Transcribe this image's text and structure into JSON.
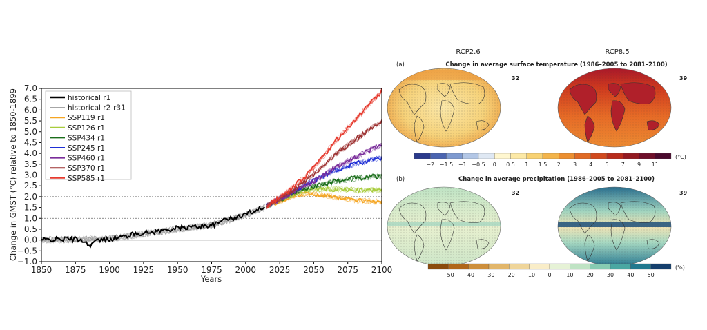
{
  "chart_data": [
    {
      "type": "line",
      "title": "",
      "xlabel": "Years",
      "ylabel": "Change in GMST (°C) relative to 1850-1899",
      "xlim": [
        1850,
        2100
      ],
      "ylim": [
        -1.0,
        7.0
      ],
      "x_ticks": [
        "1850",
        "1875",
        "1900",
        "1925",
        "1950",
        "1975",
        "2000",
        "2025",
        "2050",
        "2075",
        "2100"
      ],
      "y_ticks": [
        "−1.0",
        "−0.5",
        "0.0",
        "0.5",
        "1.0",
        "1.5",
        "2.0",
        "2.5",
        "3.0",
        "3.5",
        "4.0",
        "4.5",
        "5.0",
        "5.5",
        "6.0",
        "6.5",
        "7.0"
      ],
      "reference_lines": [
        0.0,
        1.0,
        2.0
      ],
      "legend_position": "top-left",
      "series": [
        {
          "name": "historical r1",
          "color": "#000000",
          "x": [
            1850,
            1870,
            1880,
            1885,
            1890,
            1900,
            1910,
            1920,
            1930,
            1940,
            1950,
            1960,
            1970,
            1980,
            1985,
            1990,
            2000,
            2014
          ],
          "values": [
            0.0,
            0.05,
            0.0,
            -0.25,
            -0.05,
            0.05,
            0.15,
            0.3,
            0.35,
            0.45,
            0.55,
            0.6,
            0.65,
            0.75,
            1.05,
            0.95,
            1.2,
            1.55
          ]
        },
        {
          "name": "historical r2-r31",
          "color": "#9a9a9a",
          "x": [
            1850,
            1900,
            1950,
            1975,
            2000,
            2014
          ],
          "values": [
            0.0,
            0.05,
            0.5,
            0.7,
            1.15,
            1.5
          ]
        },
        {
          "name": "SSP119 r1",
          "color": "#f5a623",
          "x": [
            2015,
            2025,
            2035,
            2045,
            2055,
            2065,
            2080,
            2100
          ],
          "values": [
            1.55,
            1.8,
            2.05,
            2.15,
            2.1,
            2.0,
            1.85,
            1.75
          ]
        },
        {
          "name": "SSP126 r1",
          "color": "#a8cc3c",
          "x": [
            2015,
            2025,
            2035,
            2045,
            2055,
            2065,
            2080,
            2100
          ],
          "values": [
            1.55,
            1.85,
            2.1,
            2.3,
            2.35,
            2.35,
            2.3,
            2.3
          ]
        },
        {
          "name": "SSP434 r1",
          "color": "#1a6d1a",
          "x": [
            2015,
            2025,
            2035,
            2045,
            2055,
            2065,
            2080,
            2100
          ],
          "values": [
            1.55,
            1.85,
            2.15,
            2.4,
            2.55,
            2.7,
            2.85,
            2.95
          ]
        },
        {
          "name": "SSP245 r1",
          "color": "#1f2fd6",
          "x": [
            2015,
            2025,
            2035,
            2045,
            2055,
            2065,
            2080,
            2100
          ],
          "values": [
            1.55,
            1.9,
            2.25,
            2.6,
            2.9,
            3.2,
            3.5,
            3.8
          ]
        },
        {
          "name": "SSP460 r1",
          "color": "#7a2d9a",
          "x": [
            2015,
            2025,
            2035,
            2045,
            2055,
            2065,
            2080,
            2100
          ],
          "values": [
            1.55,
            1.9,
            2.2,
            2.55,
            2.9,
            3.3,
            3.8,
            4.4
          ]
        },
        {
          "name": "SSP370 r1",
          "color": "#9c3030",
          "x": [
            2015,
            2025,
            2035,
            2045,
            2055,
            2065,
            2080,
            2100
          ],
          "values": [
            1.55,
            1.9,
            2.3,
            2.8,
            3.3,
            3.9,
            4.6,
            5.5
          ]
        },
        {
          "name": "SSP585 r1",
          "color": "#e63a2e",
          "x": [
            2015,
            2025,
            2035,
            2045,
            2055,
            2065,
            2080,
            2100
          ],
          "values": [
            1.55,
            1.95,
            2.45,
            3.0,
            3.7,
            4.5,
            5.5,
            6.9
          ]
        }
      ]
    },
    {
      "type": "heatmap",
      "panel_label": "(a)",
      "title": "Change in average surface temperature (1986–2005 to 2081–2100)",
      "columns": [
        "RCP2.6",
        "RCP8.5"
      ],
      "model_counts": [
        "32",
        "39"
      ],
      "colorbar_ticks": [
        "−2",
        "−1.5",
        "−1",
        "−0.5",
        "0",
        "0.5",
        "1",
        "1.5",
        "2",
        "3",
        "4",
        "5",
        "7",
        "9",
        "11"
      ],
      "colorbar_unit": "(°C)",
      "colorbar_colors": [
        "#2b3a8c",
        "#4a64b0",
        "#7e9ad0",
        "#b3c7e6",
        "#dfe8f3",
        "#fff7d0",
        "#fce9a6",
        "#f8d273",
        "#f3b44a",
        "#ec8f30",
        "#e06a25",
        "#d14a1e",
        "#b82c1c",
        "#931a22",
        "#6e0f2a",
        "#4a0a2e"
      ]
    },
    {
      "type": "heatmap",
      "panel_label": "(b)",
      "title": "Change in average precipitation (1986–2005 to 2081–2100)",
      "columns": [
        "RCP2.6",
        "RCP8.5"
      ],
      "model_counts": [
        "32",
        "39"
      ],
      "colorbar_ticks": [
        "−50",
        "−40",
        "−30",
        "−20",
        "−10",
        "0",
        "10",
        "20",
        "30",
        "40",
        "50"
      ],
      "colorbar_unit": "(%)",
      "colorbar_colors": [
        "#8a4a0c",
        "#b0661a",
        "#cd8f3c",
        "#e2b66a",
        "#efd59a",
        "#f9edc8",
        "#e6f2d6",
        "#bfe3c4",
        "#86cbb2",
        "#4aa7a2",
        "#21788e",
        "#153f6c"
      ]
    }
  ]
}
